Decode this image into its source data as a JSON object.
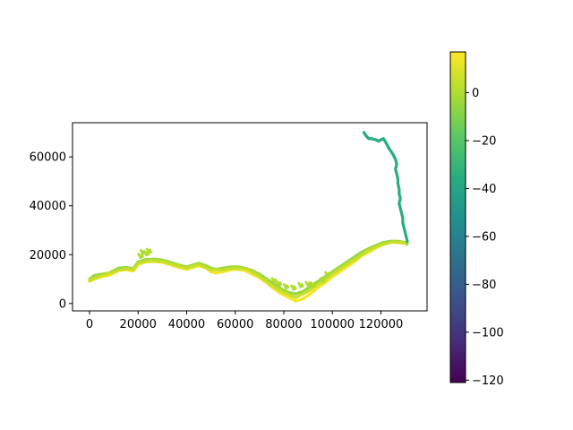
{
  "chart_data": {
    "type": "scatter",
    "title": "",
    "xlabel": "",
    "ylabel": "",
    "xlim": [
      -7000,
      139000
    ],
    "ylim": [
      -3000,
      74000
    ],
    "x_ticks": [
      0,
      20000,
      40000,
      60000,
      80000,
      100000,
      120000
    ],
    "x_tick_labels": [
      "0",
      "20000",
      "40000",
      "60000",
      "80000",
      "100000",
      "120000"
    ],
    "y_ticks": [
      0,
      20000,
      40000,
      60000
    ],
    "y_tick_labels": [
      "0",
      "20000",
      "40000",
      "60000"
    ],
    "grid": false,
    "colormap": "viridis",
    "colorbar": {
      "range": [
        -121,
        17
      ],
      "ticks": [
        0,
        -20,
        -40,
        -60,
        -80,
        -100,
        -120
      ],
      "tick_labels": [
        "0",
        "−20",
        "−40",
        "−60",
        "−80",
        "−100",
        "−120"
      ]
    },
    "series": [
      {
        "band": "upper-edge",
        "color_value": -5,
        "points": [
          [
            0,
            10000
          ],
          [
            2000,
            11500
          ],
          [
            5000,
            12000
          ],
          [
            8000,
            12500
          ],
          [
            10000,
            13500
          ],
          [
            12000,
            14500
          ],
          [
            15000,
            14800
          ],
          [
            18000,
            14300
          ],
          [
            20000,
            17000
          ],
          [
            23000,
            18000
          ],
          [
            27000,
            18200
          ],
          [
            30000,
            17800
          ],
          [
            33000,
            17000
          ],
          [
            36000,
            16000
          ],
          [
            40000,
            15000
          ],
          [
            45000,
            16500
          ],
          [
            48000,
            15500
          ],
          [
            50000,
            14500
          ],
          [
            52000,
            14000
          ],
          [
            55000,
            14500
          ],
          [
            58000,
            15000
          ],
          [
            61000,
            15000
          ],
          [
            64000,
            14500
          ],
          [
            67000,
            13500
          ],
          [
            70000,
            12000
          ],
          [
            73000,
            10000
          ],
          [
            76000,
            8000
          ],
          [
            79000,
            6000
          ],
          [
            82000,
            4500
          ],
          [
            85000,
            4000
          ],
          [
            88000,
            5000
          ],
          [
            91000,
            7000
          ],
          [
            94000,
            9000
          ],
          [
            97000,
            11000
          ],
          [
            100000,
            13000
          ],
          [
            103000,
            15000
          ],
          [
            106000,
            17000
          ],
          [
            109000,
            19000
          ],
          [
            112000,
            21000
          ],
          [
            115000,
            22500
          ],
          [
            118000,
            23800
          ],
          [
            121000,
            25000
          ],
          [
            124000,
            25500
          ],
          [
            127000,
            25500
          ],
          [
            130000,
            25000
          ],
          [
            131000,
            24000
          ]
        ]
      },
      {
        "band": "lower-edge",
        "color_value": 15,
        "points": [
          [
            0,
            9000
          ],
          [
            2000,
            10000
          ],
          [
            5000,
            11000
          ],
          [
            8000,
            11500
          ],
          [
            10000,
            12500
          ],
          [
            12000,
            13500
          ],
          [
            15000,
            13800
          ],
          [
            18000,
            13300
          ],
          [
            20000,
            16000
          ],
          [
            23000,
            17000
          ],
          [
            27000,
            17200
          ],
          [
            30000,
            16800
          ],
          [
            33000,
            16000
          ],
          [
            36000,
            15000
          ],
          [
            40000,
            14000
          ],
          [
            45000,
            15500
          ],
          [
            48000,
            14500
          ],
          [
            50000,
            13000
          ],
          [
            52000,
            12500
          ],
          [
            55000,
            13000
          ],
          [
            58000,
            13800
          ],
          [
            61000,
            14000
          ],
          [
            64000,
            13500
          ],
          [
            67000,
            12000
          ],
          [
            70000,
            10500
          ],
          [
            73000,
            8500
          ],
          [
            76000,
            6000
          ],
          [
            79000,
            4000
          ],
          [
            82000,
            2500
          ],
          [
            85000,
            1000
          ],
          [
            88000,
            2000
          ],
          [
            91000,
            4000
          ],
          [
            94000,
            6500
          ],
          [
            97000,
            8500
          ],
          [
            100000,
            11000
          ],
          [
            103000,
            13000
          ],
          [
            106000,
            15000
          ],
          [
            109000,
            17000
          ],
          [
            112000,
            19500
          ],
          [
            115000,
            21000
          ],
          [
            118000,
            22800
          ],
          [
            121000,
            24200
          ],
          [
            124000,
            25000
          ],
          [
            127000,
            25000
          ],
          [
            130000,
            24500
          ]
        ]
      },
      {
        "band": "middle",
        "color_value": 5,
        "points": [
          [
            0,
            9500
          ],
          [
            5000,
            11500
          ],
          [
            10000,
            13000
          ],
          [
            15000,
            14300
          ],
          [
            18000,
            13800
          ],
          [
            20000,
            16500
          ],
          [
            25000,
            17600
          ],
          [
            30000,
            17300
          ],
          [
            35000,
            15800
          ],
          [
            40000,
            14500
          ],
          [
            45000,
            16000
          ],
          [
            50000,
            13800
          ],
          [
            55000,
            13800
          ],
          [
            60000,
            14500
          ],
          [
            65000,
            14000
          ],
          [
            70000,
            11200
          ],
          [
            75000,
            7500
          ],
          [
            80000,
            4500
          ],
          [
            85000,
            2500
          ],
          [
            90000,
            5000
          ],
          [
            95000,
            8500
          ],
          [
            100000,
            12000
          ],
          [
            105000,
            15500
          ],
          [
            110000,
            18500
          ],
          [
            115000,
            21800
          ],
          [
            120000,
            24000
          ],
          [
            125000,
            25300
          ],
          [
            130000,
            24800
          ]
        ]
      },
      {
        "band": "scatter-patches",
        "color_value": 0,
        "points": [
          [
            21000,
            19500
          ],
          [
            22000,
            21000
          ],
          [
            23500,
            20500
          ],
          [
            24500,
            21500
          ],
          [
            76000,
            9500
          ],
          [
            78000,
            8200
          ],
          [
            81000,
            7000
          ],
          [
            84000,
            6500
          ],
          [
            87000,
            7500
          ],
          [
            90000,
            8000
          ],
          [
            92000,
            7800
          ],
          [
            96000,
            9500
          ],
          [
            98000,
            12000
          ]
        ]
      },
      {
        "band": "northern-branch",
        "color_value": -35,
        "points": [
          [
            113000,
            70000
          ],
          [
            114000,
            68500
          ],
          [
            115000,
            67500
          ],
          [
            116000,
            67500
          ],
          [
            118000,
            67000
          ],
          [
            119000,
            66500
          ],
          [
            120000,
            67000
          ],
          [
            121000,
            67500
          ],
          [
            122000,
            66000
          ],
          [
            123000,
            64000
          ],
          [
            124000,
            62500
          ],
          [
            125000,
            61000
          ],
          [
            126000,
            59000
          ],
          [
            126500,
            57000
          ],
          [
            126000,
            55000
          ],
          [
            126500,
            53000
          ],
          [
            127000,
            51000
          ],
          [
            127000,
            49000
          ],
          [
            127500,
            47000
          ],
          [
            127500,
            45000
          ],
          [
            128000,
            43000
          ],
          [
            127500,
            41000
          ],
          [
            128000,
            39000
          ],
          [
            128500,
            37000
          ],
          [
            129000,
            35000
          ],
          [
            129000,
            33000
          ],
          [
            129500,
            31000
          ],
          [
            130000,
            29000
          ],
          [
            130500,
            27000
          ],
          [
            131000,
            25000
          ]
        ]
      }
    ]
  }
}
